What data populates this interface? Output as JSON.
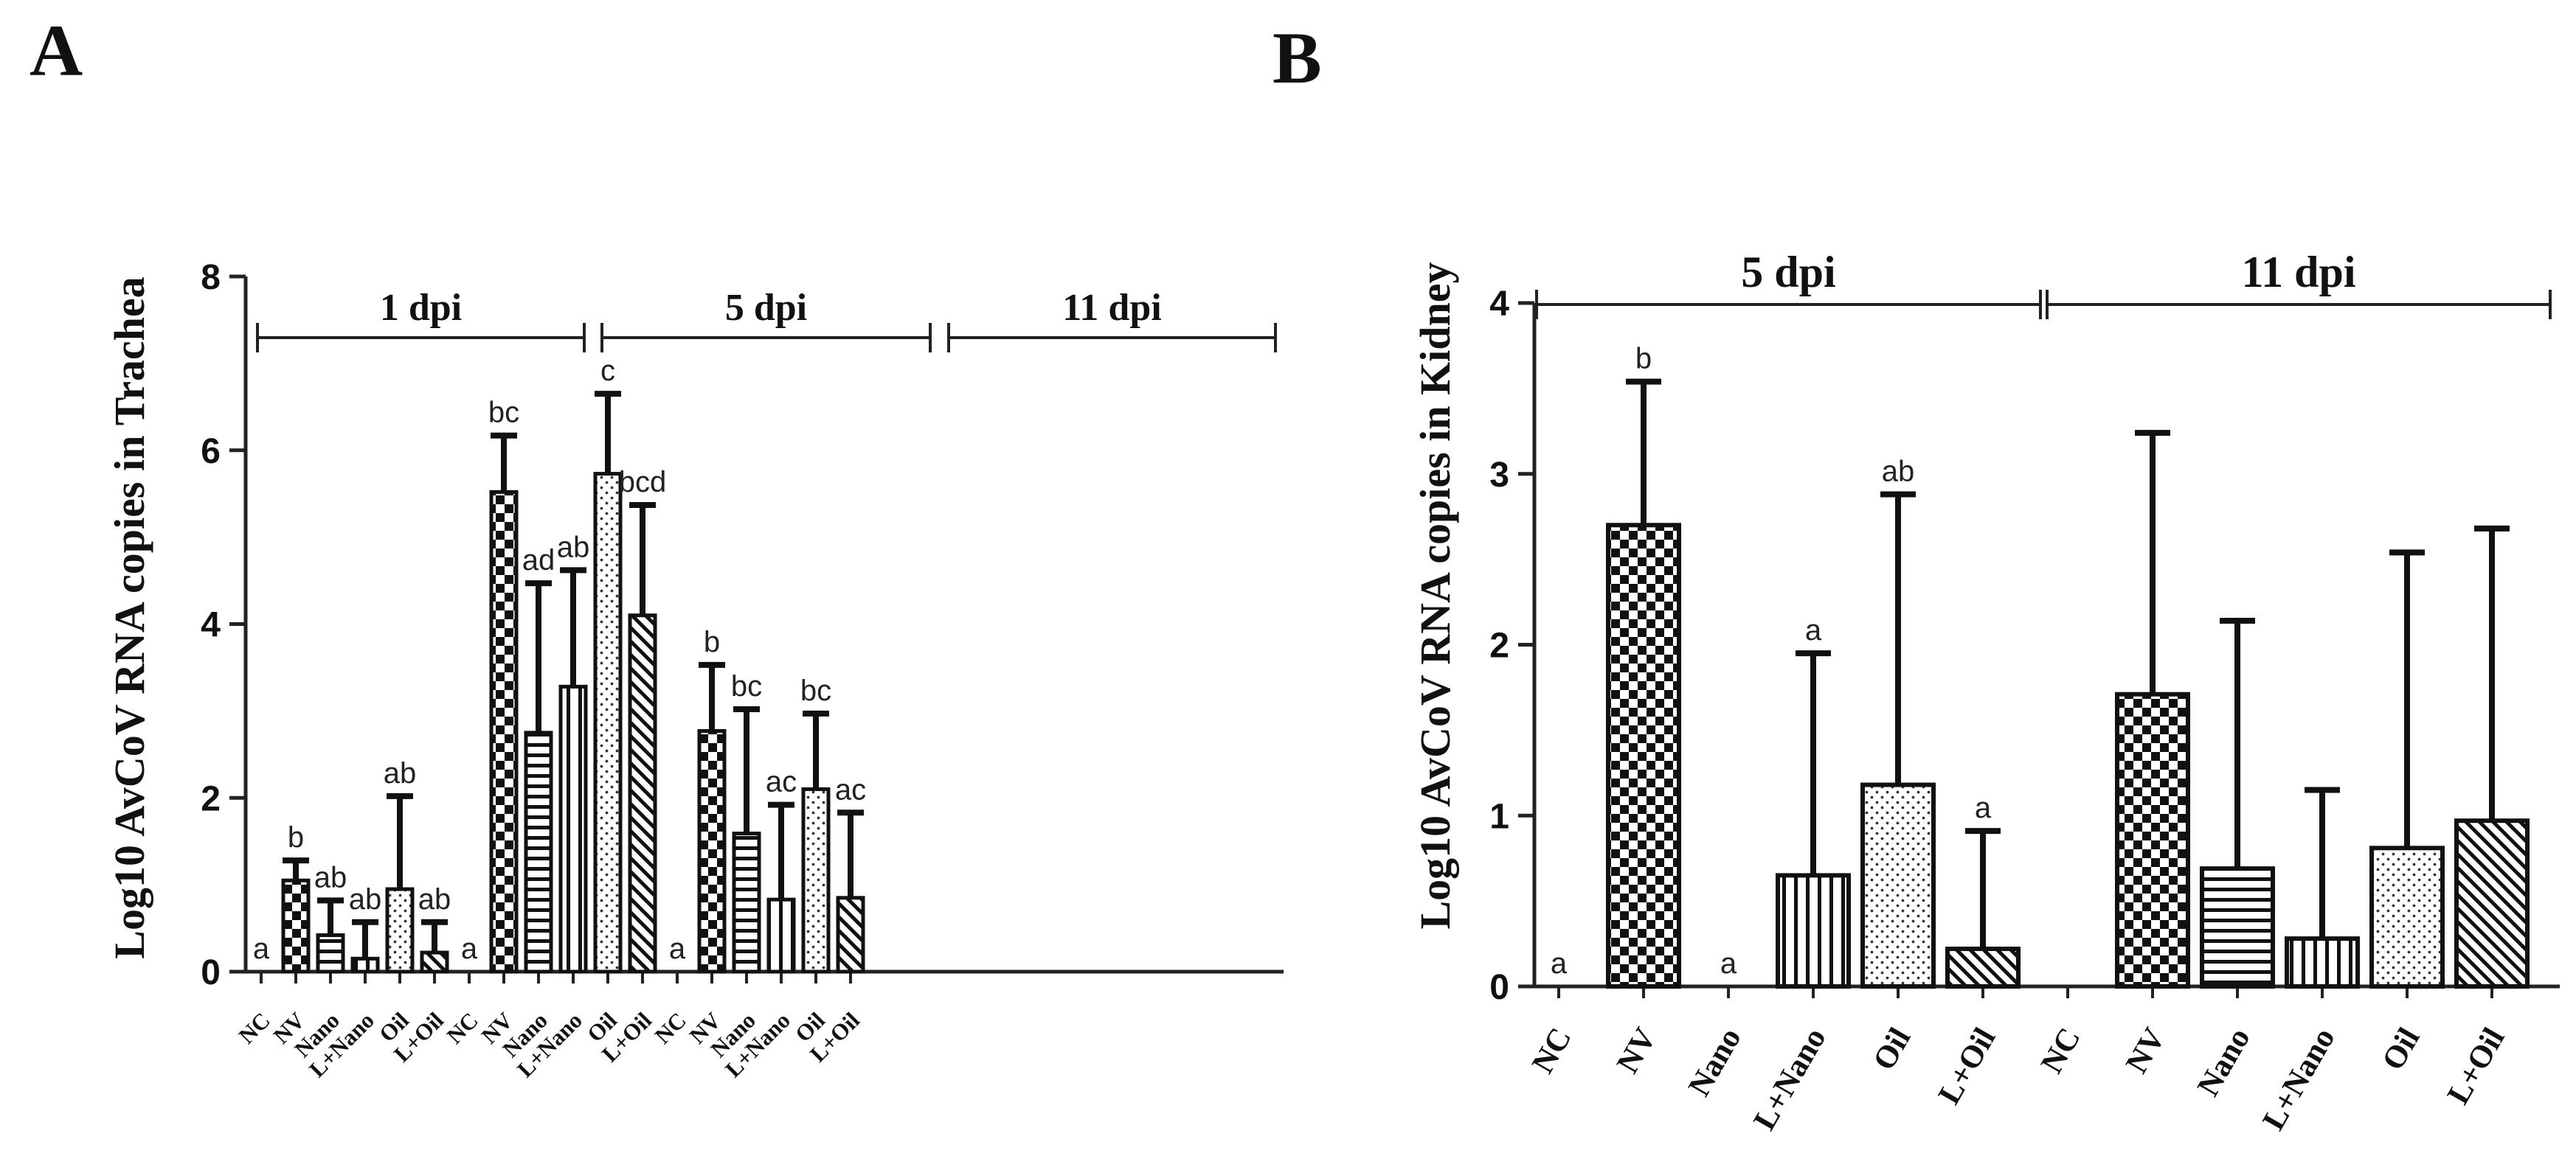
{
  "panels": {
    "a": {
      "label": "A"
    },
    "b": {
      "label": "B"
    }
  },
  "chart_data": [
    {
      "type": "bar",
      "panel": "A",
      "title": "",
      "xlabel": "",
      "ylabel": "Log10 AvCoV RNA copies in Trachea",
      "ylim": [
        0,
        8
      ],
      "yticks": [
        "0",
        "2",
        "4",
        "6",
        "8"
      ],
      "categories": [
        "NC",
        "NV",
        "Nano",
        "L+Nano",
        "Oil",
        "L+Oil",
        "NC",
        "NV",
        "Nano",
        "L+Nano",
        "Oil",
        "L+Oil",
        "NC",
        "NV",
        "Nano",
        "L+Nano",
        "Oil",
        "L+Oil"
      ],
      "groups": [
        "1 dpi",
        "5 dpi",
        "11 dpi"
      ],
      "values": [
        0,
        1.05,
        0.42,
        0.15,
        0.95,
        0.22,
        0,
        5.52,
        2.75,
        3.28,
        5.73,
        4.1,
        0,
        2.77,
        1.59,
        0.83,
        2.1,
        0.85
      ],
      "error_upper": [
        0,
        1.28,
        0.82,
        0.57,
        2.02,
        0.57,
        0,
        6.17,
        4.47,
        4.62,
        6.65,
        5.37,
        0,
        3.53,
        3.02,
        1.92,
        2.97,
        1.83
      ],
      "significance": [
        "a",
        "b",
        "ab",
        "ab",
        "ab",
        "ab",
        "a",
        "bc",
        "ad",
        "ab",
        "c",
        "bcd",
        "a",
        "b",
        "bc",
        "ac",
        "bc",
        "ac"
      ]
    },
    {
      "type": "bar",
      "panel": "B",
      "title": "",
      "xlabel": "",
      "ylabel": "Log10 AvCoV RNA copies in Kidney",
      "ylim": [
        0,
        4
      ],
      "yticks": [
        "0",
        "1",
        "2",
        "3",
        "4"
      ],
      "categories": [
        "NC",
        "NV",
        "Nano",
        "L+Nano",
        "Oil",
        "L+Oil",
        "NC",
        "NV",
        "Nano",
        "L+Nano",
        "Oil",
        "L+Oil"
      ],
      "groups": [
        "5 dpi",
        "11 dpi"
      ],
      "values": [
        0,
        2.7,
        0,
        0.65,
        1.18,
        0.22,
        0,
        1.71,
        0.69,
        0.28,
        0.81,
        0.97
      ],
      "error_upper": [
        0,
        3.54,
        0,
        1.95,
        2.88,
        0.91,
        0,
        3.24,
        2.14,
        1.15,
        2.54,
        2.68
      ],
      "significance": [
        "a",
        "b",
        "a",
        "a",
        "ab",
        "a",
        "",
        "",
        "",
        "",
        "",
        ""
      ]
    }
  ]
}
